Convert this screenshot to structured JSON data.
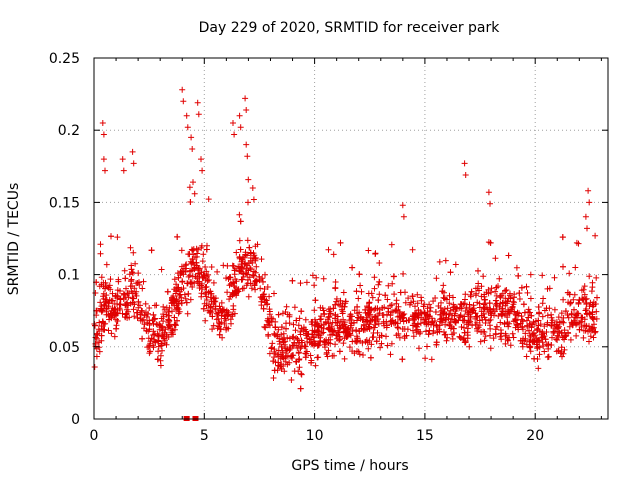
{
  "chart_data": {
    "type": "scatter",
    "title": "Day 229 of 2020, SRMTID for receiver park",
    "xlabel": "GPS time / hours",
    "ylabel": "SRMTID / TECUs",
    "xlim": [
      0,
      23.3
    ],
    "ylim": [
      0,
      0.25
    ],
    "x_ticks": [
      0,
      5,
      10,
      15,
      20
    ],
    "x_tick_labels": [
      "0",
      "5",
      "10",
      "15",
      "20"
    ],
    "y_ticks": [
      0,
      0.05,
      0.1,
      0.15,
      0.2,
      0.25
    ],
    "y_tick_labels": [
      "0",
      "0.05",
      "0.1",
      "0.15",
      "0.2",
      "0.25"
    ],
    "grid": true,
    "marker": "plus",
    "color": "#e00000",
    "trend": [
      {
        "x": 0.0,
        "y": 0.055
      },
      {
        "x": 0.5,
        "y": 0.08
      },
      {
        "x": 1.0,
        "y": 0.075
      },
      {
        "x": 1.5,
        "y": 0.09
      },
      {
        "x": 2.0,
        "y": 0.085
      },
      {
        "x": 2.5,
        "y": 0.06
      },
      {
        "x": 3.0,
        "y": 0.055
      },
      {
        "x": 3.5,
        "y": 0.075
      },
      {
        "x": 4.0,
        "y": 0.095
      },
      {
        "x": 4.5,
        "y": 0.105
      },
      {
        "x": 5.0,
        "y": 0.095
      },
      {
        "x": 5.5,
        "y": 0.075
      },
      {
        "x": 6.0,
        "y": 0.075
      },
      {
        "x": 6.5,
        "y": 0.1
      },
      {
        "x": 7.0,
        "y": 0.11
      },
      {
        "x": 7.5,
        "y": 0.095
      },
      {
        "x": 8.0,
        "y": 0.06
      },
      {
        "x": 8.5,
        "y": 0.05
      },
      {
        "x": 9.0,
        "y": 0.05
      },
      {
        "x": 10.0,
        "y": 0.058
      },
      {
        "x": 11.0,
        "y": 0.065
      },
      {
        "x": 12.0,
        "y": 0.065
      },
      {
        "x": 13.0,
        "y": 0.07
      },
      {
        "x": 14.0,
        "y": 0.072
      },
      {
        "x": 15.0,
        "y": 0.07
      },
      {
        "x": 16.0,
        "y": 0.068
      },
      {
        "x": 17.0,
        "y": 0.072
      },
      {
        "x": 18.0,
        "y": 0.075
      },
      {
        "x": 19.0,
        "y": 0.07
      },
      {
        "x": 20.0,
        "y": 0.06
      },
      {
        "x": 21.0,
        "y": 0.058
      },
      {
        "x": 22.0,
        "y": 0.075
      },
      {
        "x": 22.8,
        "y": 0.07
      }
    ],
    "spikes": [
      {
        "x": 0.4,
        "y": 0.205
      },
      {
        "x": 0.45,
        "y": 0.18
      },
      {
        "x": 1.3,
        "y": 0.18
      },
      {
        "x": 1.75,
        "y": 0.185
      },
      {
        "x": 4.0,
        "y": 0.228
      },
      {
        "x": 4.2,
        "y": 0.21
      },
      {
        "x": 4.4,
        "y": 0.195
      },
      {
        "x": 4.7,
        "y": 0.219
      },
      {
        "x": 4.85,
        "y": 0.18
      },
      {
        "x": 6.3,
        "y": 0.205
      },
      {
        "x": 6.6,
        "y": 0.21
      },
      {
        "x": 6.85,
        "y": 0.222
      },
      {
        "x": 6.9,
        "y": 0.19
      },
      {
        "x": 7.2,
        "y": 0.16
      },
      {
        "x": 14.0,
        "y": 0.148
      },
      {
        "x": 16.8,
        "y": 0.177
      },
      {
        "x": 17.9,
        "y": 0.157
      },
      {
        "x": 22.4,
        "y": 0.158
      },
      {
        "x": 22.3,
        "y": 0.14
      }
    ],
    "n_points": 2300,
    "zero_markers": [
      4.2,
      4.6
    ]
  }
}
